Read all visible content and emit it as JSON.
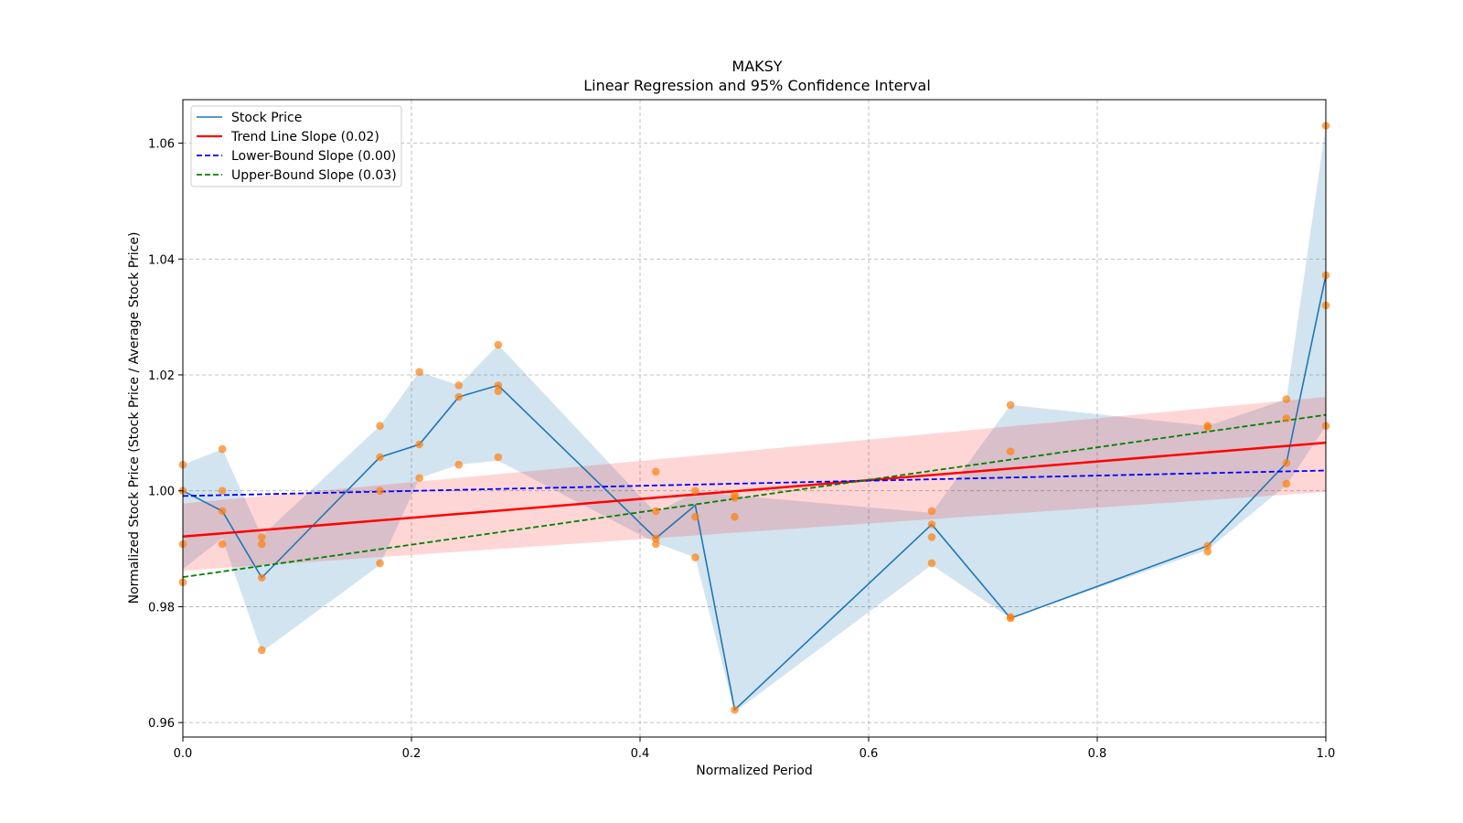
{
  "chart_data": {
    "type": "line",
    "title": "MAKSY",
    "subtitle": "Linear Regression and 95% Confidence Interval",
    "xlabel": "Normalized Period",
    "ylabel": "Normalized Stock Price (Stock Price / Average Stock Price)",
    "xlim": [
      0.0,
      1.0
    ],
    "ylim": [
      0.9575,
      1.0675
    ],
    "xticks": [
      0.0,
      0.2,
      0.4,
      0.6,
      0.8,
      1.0
    ],
    "xtick_labels": [
      "0.0",
      "0.2",
      "0.4",
      "0.6",
      "0.8",
      "1.0"
    ],
    "yticks": [
      0.96,
      0.98,
      1.0,
      1.02,
      1.04,
      1.06
    ],
    "ytick_labels": [
      "0.96",
      "0.98",
      "1.00",
      "1.02",
      "1.04",
      "1.06"
    ],
    "grid": true,
    "legend_position": "upper-left",
    "legend": [
      "Stock Price",
      "Trend Line Slope (0.02)",
      "Lower-Bound Slope (0.00)",
      "Upper-Bound Slope (0.03)"
    ],
    "colors": {
      "price": "#1f77b4",
      "price_band": "#1f77b4",
      "trend": "#ff0000",
      "trend_band": "#ff0000",
      "lower": "#0000ff",
      "upper": "#008000",
      "scatter": "#ff7f0e",
      "grid": "#b0b0b0"
    },
    "stock_price": {
      "x": [
        0.0,
        0.0345,
        0.069,
        0.1724,
        0.2069,
        0.2414,
        0.2759,
        0.4138,
        0.4483,
        0.4828,
        0.6552,
        0.7241,
        0.8966,
        0.9655,
        1.0
      ],
      "y": [
        1.0,
        0.9965,
        0.985,
        1.0058,
        1.008,
        1.0162,
        1.0182,
        0.9918,
        0.9975,
        0.9622,
        0.9942,
        0.978,
        0.9905,
        1.0048,
        1.0372
      ],
      "band_low": [
        0.9865,
        0.9918,
        0.9722,
        0.9872,
        1.0022,
        1.0045,
        1.0052,
        0.991,
        0.9885,
        0.9618,
        0.9872,
        0.978,
        0.9898,
        1.001,
        1.0112
      ],
      "band_high": [
        1.0045,
        1.0072,
        0.9922,
        1.0112,
        1.0205,
        1.0182,
        1.0252,
        0.9962,
        0.9998,
        0.9992,
        0.9962,
        1.0148,
        1.0112,
        1.0158,
        1.063
      ]
    },
    "scatter": {
      "x": [
        0.0,
        0.0,
        0.0,
        0.0,
        0.0345,
        0.0345,
        0.0345,
        0.0345,
        0.069,
        0.069,
        0.069,
        0.069,
        0.1724,
        0.1724,
        0.1724,
        0.1724,
        0.2069,
        0.2069,
        0.2069,
        0.2414,
        0.2414,
        0.2414,
        0.2759,
        0.2759,
        0.2759,
        0.2759,
        0.4138,
        0.4138,
        0.4138,
        0.4138,
        0.4483,
        0.4483,
        0.4483,
        0.4828,
        0.4828,
        0.4828,
        0.4828,
        0.6552,
        0.6552,
        0.6552,
        0.6552,
        0.7241,
        0.7241,
        0.7241,
        0.7241,
        0.8966,
        0.8966,
        0.8966,
        0.8966,
        0.9655,
        0.9655,
        0.9655,
        0.9655,
        1.0,
        1.0,
        1.0,
        1.0
      ],
      "y": [
        1.0045,
        1.0,
        0.9908,
        0.9842,
        1.0072,
        1.0,
        0.9965,
        0.9908,
        0.992,
        0.9908,
        0.985,
        0.9725,
        1.0112,
        1.0058,
        1.0,
        0.9875,
        1.0205,
        1.008,
        1.0022,
        1.0182,
        1.0162,
        1.0045,
        1.0252,
        1.0182,
        1.0172,
        1.0058,
        1.0033,
        0.9965,
        0.9918,
        0.9908,
        1.0,
        0.9955,
        0.9885,
        0.9992,
        0.9988,
        0.9955,
        0.9622,
        0.9965,
        0.9942,
        0.992,
        0.9875,
        1.0148,
        1.0068,
        0.9782,
        0.978,
        1.0112,
        1.011,
        0.9905,
        0.9895,
        1.0158,
        1.0125,
        1.0048,
        1.0012,
        1.063,
        1.0372,
        1.032,
        1.0112
      ]
    },
    "trend_line": {
      "x": [
        0.0,
        1.0
      ],
      "y": [
        0.9921,
        1.0083
      ]
    },
    "trend_band": {
      "x": [
        0.0,
        1.0
      ],
      "low": [
        0.9862,
        0.9998
      ],
      "high": [
        0.9978,
        1.0162
      ]
    },
    "lower_bound_line": {
      "x": [
        0.0,
        1.0
      ],
      "y": [
        0.9991,
        1.0035
      ]
    },
    "upper_bound_line": {
      "x": [
        0.0,
        1.0
      ],
      "y": [
        0.9851,
        1.0131
      ]
    }
  }
}
